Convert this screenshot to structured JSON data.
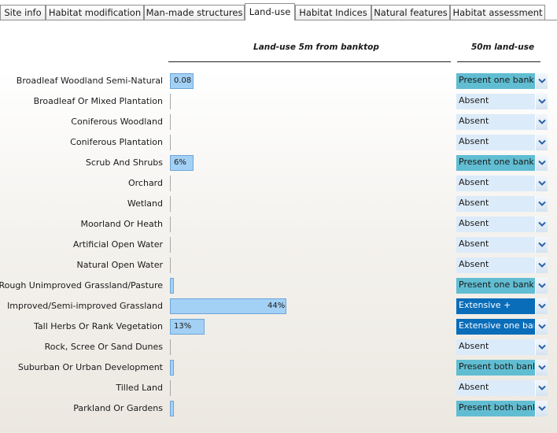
{
  "tabs": [
    {
      "label": "Site info",
      "active": false
    },
    {
      "label": "Habitat modification",
      "active": false
    },
    {
      "label": "Man-made structures",
      "active": false
    },
    {
      "label": "Land-use",
      "active": true
    },
    {
      "label": "Habitat Indices",
      "active": false
    },
    {
      "label": "Natural features",
      "active": false
    },
    {
      "label": "Habitat assessment",
      "active": false
    }
  ],
  "headers": {
    "landuse_5m": "Land-use 5m from banktop",
    "landuse_50m": "50m land-use"
  },
  "rows": [
    {
      "label": "Broadleaf Woodland Semi-Natural",
      "pct": 8,
      "bar_text": "0.08",
      "select": "Present one bank",
      "level": "present"
    },
    {
      "label": "Broadleaf Or Mixed Plantation",
      "pct": 0,
      "bar_text": "",
      "select": "Absent",
      "level": "absent"
    },
    {
      "label": "Coniferous Woodland",
      "pct": 0,
      "bar_text": "",
      "select": "Absent",
      "level": "absent"
    },
    {
      "label": "Coniferous Plantation",
      "pct": 0,
      "bar_text": "",
      "select": "Absent",
      "level": "absent"
    },
    {
      "label": "Scrub And Shrubs",
      "pct": 6,
      "bar_text": "6%",
      "select": "Present one bank",
      "level": "present"
    },
    {
      "label": "Orchard",
      "pct": 0,
      "bar_text": "",
      "select": "Absent",
      "level": "absent"
    },
    {
      "label": "Wetland",
      "pct": 0,
      "bar_text": "",
      "select": "Absent",
      "level": "absent"
    },
    {
      "label": "Moorland Or Heath",
      "pct": 0,
      "bar_text": "",
      "select": "Absent",
      "level": "absent"
    },
    {
      "label": "Artificial Open Water",
      "pct": 0,
      "bar_text": "",
      "select": "Absent",
      "level": "absent"
    },
    {
      "label": "Natural Open Water",
      "pct": 0,
      "bar_text": "",
      "select": "Absent",
      "level": "absent"
    },
    {
      "label": "Rough Unimproved Grassland/Pasture",
      "pct": 1,
      "bar_text": "",
      "select": "Present one bank",
      "level": "present"
    },
    {
      "label": "Improved/Semi-improved Grassland",
      "pct": 44,
      "bar_text": "44%",
      "select": "Extensive +",
      "level": "extensive"
    },
    {
      "label": "Tall Herbs Or Rank Vegetation",
      "pct": 13,
      "bar_text": "13%",
      "select": "Extensive one bank",
      "level": "extensive"
    },
    {
      "label": "Rock, Scree Or Sand Dunes",
      "pct": 0,
      "bar_text": "",
      "select": "Absent",
      "level": "absent"
    },
    {
      "label": "Suburban Or Urban Development",
      "pct": 1,
      "bar_text": "",
      "select": "Present both banks",
      "level": "present"
    },
    {
      "label": "Tilled Land",
      "pct": 0,
      "bar_text": "",
      "select": "Absent",
      "level": "absent"
    },
    {
      "label": "Parkland Or Gardens",
      "pct": 1,
      "bar_text": "",
      "select": "Present both banks",
      "level": "present"
    }
  ]
}
